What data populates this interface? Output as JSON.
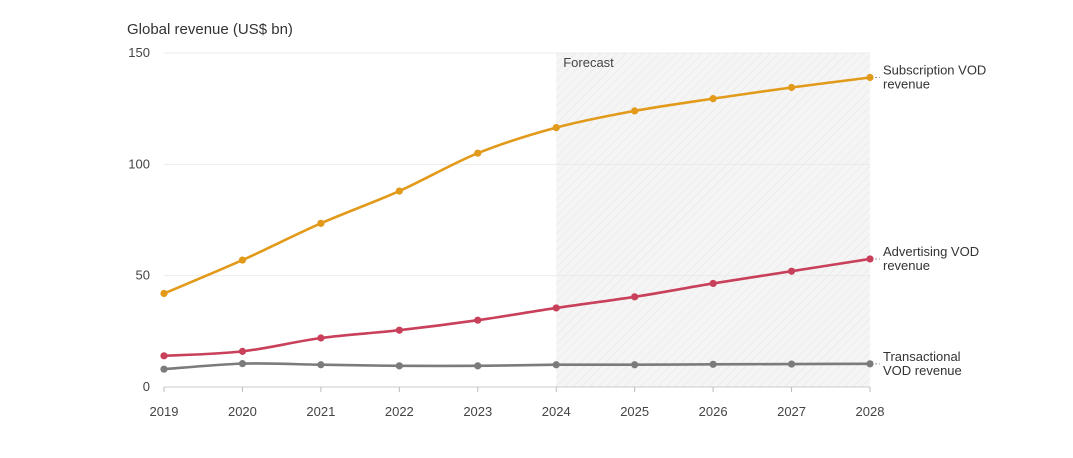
{
  "chart_data": {
    "type": "line",
    "title": "Global revenue (US$ bn)",
    "xlabel": "",
    "ylabel": "",
    "x": [
      2019,
      2020,
      2021,
      2022,
      2023,
      2024,
      2025,
      2026,
      2027,
      2028
    ],
    "x_tick_labels": [
      "2019",
      "2020",
      "2021",
      "2022",
      "2023",
      "2024",
      "2025",
      "2026",
      "2027",
      "2028"
    ],
    "ylim": [
      0,
      150
    ],
    "y_ticks": [
      0,
      50,
      100,
      150
    ],
    "y_tick_labels": [
      "0",
      "50",
      "100",
      "150"
    ],
    "grid": true,
    "forecast": {
      "label": "Forecast",
      "start": 2024,
      "end": 2028
    },
    "series": [
      {
        "name": "Subscription VOD revenue",
        "label_lines": [
          "Subscription VOD",
          "revenue"
        ],
        "color": "#e29a1b",
        "values": [
          42,
          57,
          73.5,
          88,
          105,
          116.5,
          124,
          129.5,
          134.5,
          139
        ]
      },
      {
        "name": "Advertising VOD revenue",
        "label_lines": [
          "Advertising VOD",
          "revenue"
        ],
        "color": "#c9405a",
        "values": [
          14,
          16,
          22,
          25.5,
          30,
          35.5,
          40.5,
          46.5,
          52,
          57.5
        ]
      },
      {
        "name": "Transactional VOD revenue",
        "label_lines": [
          "Transactional",
          "VOD revenue"
        ],
        "color": "#7b7b7b",
        "values": [
          8,
          10.5,
          10,
          9.5,
          9.5,
          10,
          10,
          10.2,
          10.3,
          10.4
        ]
      }
    ]
  }
}
